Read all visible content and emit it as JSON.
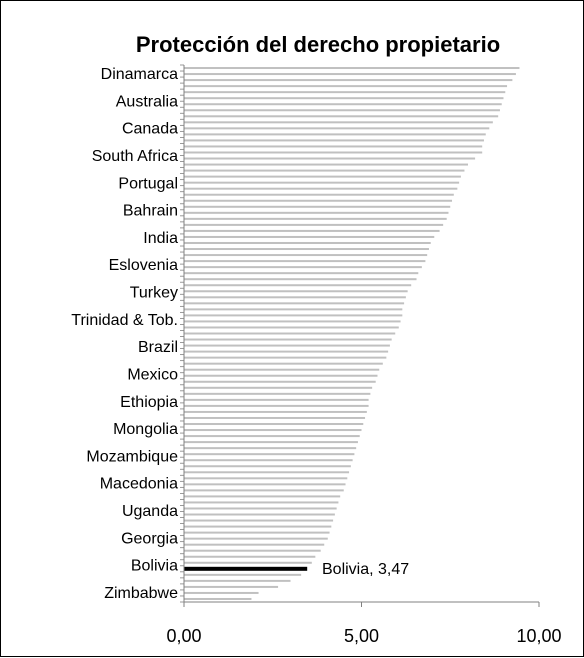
{
  "chart_data": {
    "type": "bar",
    "orientation": "horizontal",
    "title": "Protección del derecho propietario",
    "xlabel": "",
    "ylabel": "",
    "xlim": [
      0,
      10
    ],
    "xticks": [
      "0,00",
      "5,00",
      "10,00"
    ],
    "grid": false,
    "legend": "none",
    "colors": {
      "bar": "#c0c0c0",
      "highlight": "#000000",
      "axis": "#808080"
    },
    "category_labels": [
      "Dinamarca",
      "Australia",
      "Canada",
      "South Africa",
      "Portugal",
      "Bahrain",
      "India",
      "Eslovenia",
      "Turkey",
      "Trinidad & Tob.",
      "Brazil",
      "Mexico",
      "Ethiopia",
      "Mongolia",
      "Mozambique",
      "Macedonia",
      "Uganda",
      "Georgia",
      "Bolivia",
      "Zimbabwe"
    ],
    "values": [
      9.45,
      9.35,
      9.25,
      9.1,
      9.05,
      9.0,
      8.95,
      8.9,
      8.85,
      8.7,
      8.6,
      8.5,
      8.45,
      8.4,
      8.4,
      8.2,
      8.0,
      7.9,
      7.8,
      7.75,
      7.7,
      7.6,
      7.55,
      7.5,
      7.45,
      7.4,
      7.3,
      7.2,
      7.05,
      6.95,
      6.9,
      6.85,
      6.8,
      6.7,
      6.6,
      6.55,
      6.4,
      6.3,
      6.25,
      6.2,
      6.15,
      6.15,
      6.1,
      6.05,
      5.95,
      5.85,
      5.8,
      5.75,
      5.7,
      5.6,
      5.5,
      5.45,
      5.4,
      5.3,
      5.25,
      5.2,
      5.2,
      5.15,
      5.1,
      5.05,
      5.0,
      4.95,
      4.9,
      4.85,
      4.8,
      4.75,
      4.7,
      4.65,
      4.6,
      4.55,
      4.5,
      4.4,
      4.35,
      4.3,
      4.25,
      4.2,
      4.15,
      4.1,
      4.05,
      3.95,
      3.85,
      3.7,
      3.6,
      3.47,
      3.3,
      3.0,
      2.65,
      2.1,
      1.9
    ],
    "highlight": {
      "category": "Bolivia",
      "value": 3.47,
      "label": "Bolivia, 3,47"
    }
  }
}
